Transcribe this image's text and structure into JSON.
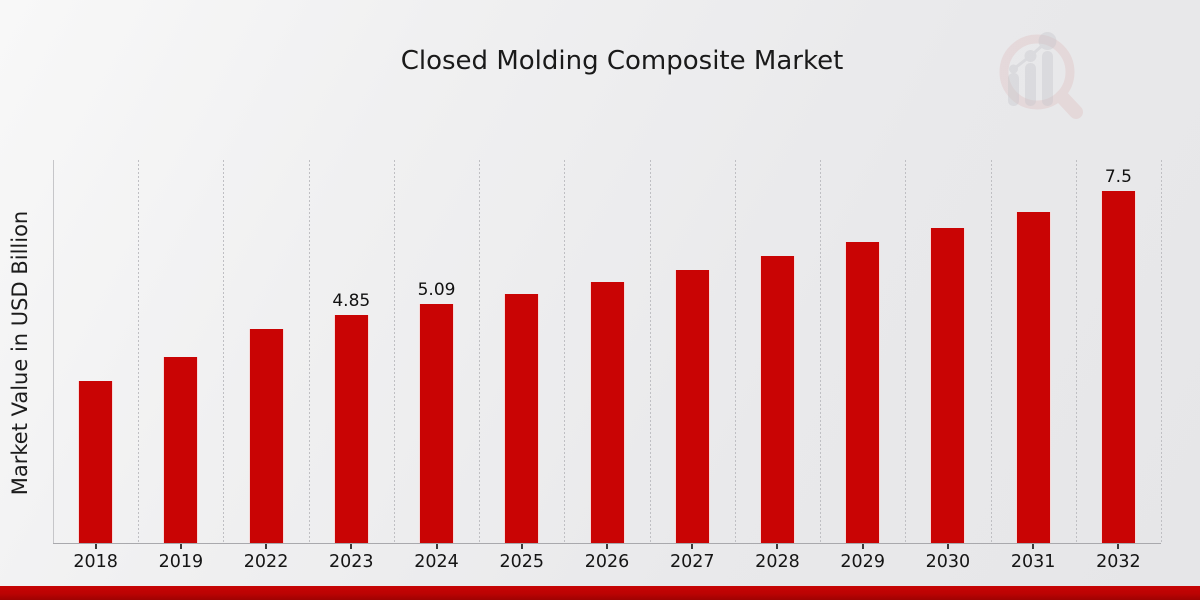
{
  "chart_data": {
    "type": "bar",
    "title": "Closed Molding Composite Market",
    "xlabel": "",
    "ylabel": "Market Value in USD Billion",
    "categories": [
      "2018",
      "2019",
      "2022",
      "2023",
      "2024",
      "2025",
      "2026",
      "2027",
      "2028",
      "2029",
      "2030",
      "2031",
      "2032"
    ],
    "values": [
      3.45,
      3.95,
      4.55,
      4.85,
      5.09,
      5.3,
      5.55,
      5.8,
      6.1,
      6.4,
      6.7,
      7.05,
      7.5
    ],
    "bar_labels": {
      "2023": "4.85",
      "2024": "5.09",
      "2032": "7.5"
    },
    "ylim": [
      0,
      8.15
    ],
    "grid": "vertical-dashed",
    "legend": "none",
    "bar_color": "#c90404"
  },
  "colors": {
    "bar": "#c90404",
    "footer_band": "#bb0303",
    "background_light": "#f8f8f8",
    "background_dark": "#e6e6e8",
    "gridline": "#bfbfc3",
    "text": "#1a1a1a"
  },
  "logo": {
    "name": "magnifier-bar-chart-logo"
  }
}
